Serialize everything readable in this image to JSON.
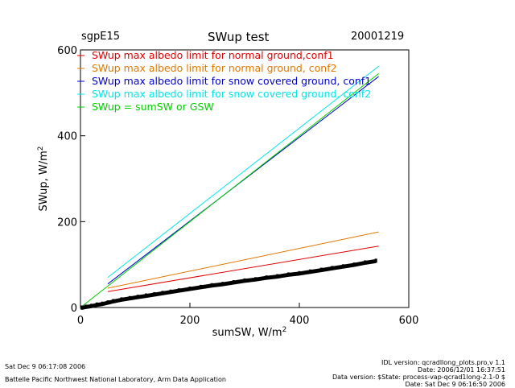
{
  "header": {
    "site": "sgpE15",
    "title": "SWup test",
    "date": "20001219"
  },
  "footer": {
    "run_time": "Sat Dec  9 06:17:08 2006",
    "institution": "Battelle Pacific Northwest National Laboratory, Arm Data Application",
    "idl_version": "IDL version: qcradllong_plots.pro,v 1.1",
    "version_date": "Date: 2006/12/01 16:37:51",
    "data_version": "Data version: $State: process-vap-qcrad1long-2.1-0 $",
    "data_date": "Date: Sat Dec  9 06:16:50 2006"
  },
  "colors": {
    "conf1_normal": "#e00000",
    "conf2_normal": "#e07800",
    "conf1_snow": "#0000d0",
    "conf2_snow": "#00e8e8",
    "equal": "#00d000",
    "data": "#000000"
  },
  "chart_data": {
    "type": "line",
    "title": "SWup test",
    "xlabel": "sumSW, W/m",
    "ylabel": "SWup, W/m",
    "unit_superscript": "2",
    "xlim": [
      0,
      600
    ],
    "ylim": [
      0,
      600
    ],
    "xticks": [
      0,
      200,
      400,
      600
    ],
    "yticks": [
      0,
      200,
      400,
      600
    ],
    "grid": false,
    "legend_position": "top-left",
    "series": [
      {
        "name": "SWup max albedo limit for normal ground,conf1",
        "color_key": "conf1_normal",
        "style": "line",
        "x": [
          50,
          545
        ],
        "y": [
          37,
          143
        ]
      },
      {
        "name": "SWup max albedo limit for normal ground, conf2",
        "color_key": "conf2_normal",
        "style": "line",
        "x": [
          50,
          545
        ],
        "y": [
          45,
          176
        ]
      },
      {
        "name": "SWup max albedo limit for snow covered ground, conf1",
        "color_key": "conf1_snow",
        "style": "line",
        "x": [
          50,
          545
        ],
        "y": [
          55,
          538
        ]
      },
      {
        "name": "SWup max albedo limit for snow covered ground, conf2",
        "color_key": "conf2_snow",
        "style": "line",
        "x": [
          50,
          545
        ],
        "y": [
          70,
          562
        ]
      },
      {
        "name": "SWup = sumSW or GSW",
        "color_key": "equal",
        "style": "line",
        "x": [
          0,
          545
        ],
        "y": [
          0,
          545
        ]
      },
      {
        "name": "",
        "color_key": "data",
        "style": "scatter",
        "x": [
          2,
          10,
          20,
          30,
          40,
          50,
          60,
          75,
          90,
          105,
          120,
          135,
          150,
          165,
          180,
          200,
          220,
          240,
          260,
          280,
          300,
          320,
          340,
          360,
          380,
          400,
          420,
          440,
          460,
          480,
          500,
          520,
          540
        ],
        "y": [
          0,
          2,
          4,
          7,
          9,
          12,
          15,
          19,
          22,
          25,
          28,
          31,
          34,
          37,
          40,
          44,
          48,
          52,
          55,
          59,
          63,
          66,
          70,
          73,
          77,
          80,
          84,
          88,
          92,
          96,
          100,
          105,
          109
        ]
      }
    ]
  }
}
